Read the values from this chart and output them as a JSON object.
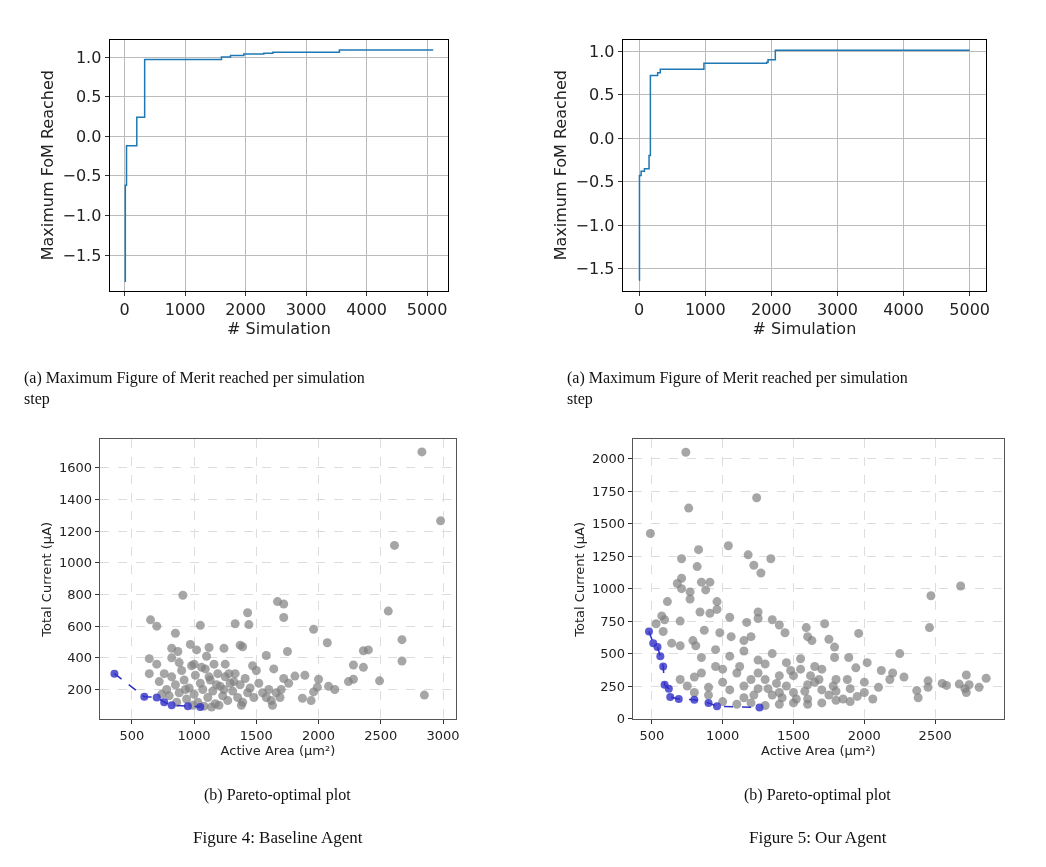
{
  "chart_data": [
    {
      "type": "step",
      "xlabel": "# Simulation",
      "ylabel": "Maximum FoM Reached",
      "grid": true,
      "xlim": [
        -250,
        5350
      ],
      "xticks": [
        0,
        1000,
        2000,
        3000,
        4000,
        5000
      ],
      "ylim": [
        -1.95,
        1.22
      ],
      "yticks": [
        {
          "value": -1.5,
          "label": "−1.5"
        },
        {
          "value": -1,
          "label": "−1.0"
        },
        {
          "value": -0.5,
          "label": "−0.5"
        },
        {
          "value": 0,
          "label": "0.0"
        },
        {
          "value": 0.5,
          "label": "0.5"
        },
        {
          "value": 1,
          "label": "1.0"
        }
      ],
      "series": [
        {
          "color": "#1f77b4",
          "x": [
            0,
            10,
            30,
            200,
            330,
            1600,
            1750,
            1970,
            2300,
            2450,
            3550,
            5100
          ],
          "values": [
            -1.83,
            -0.62,
            -0.12,
            0.24,
            0.97,
            1.0,
            1.02,
            1.04,
            1.05,
            1.06,
            1.09,
            1.09
          ]
        }
      ],
      "annotations": [
        "(a) Maximum Figure of Merit reached per simulation step"
      ]
    },
    {
      "type": "step",
      "xlabel": "# Simulation",
      "ylabel": "Maximum FoM Reached",
      "grid": true,
      "xlim": [
        -250,
        5250
      ],
      "xticks": [
        0,
        1000,
        2000,
        3000,
        4000,
        5000
      ],
      "ylim": [
        -1.75,
        1.13
      ],
      "yticks": [
        {
          "value": -1.5,
          "label": "−1.5"
        },
        {
          "value": -1,
          "label": "−1.0"
        },
        {
          "value": -0.5,
          "label": "−0.5"
        },
        {
          "value": 0,
          "label": "0.0"
        },
        {
          "value": 0.5,
          "label": "0.5"
        },
        {
          "value": 1,
          "label": "1.0"
        }
      ],
      "series": [
        {
          "color": "#1f77b4",
          "x": [
            0,
            5,
            30,
            80,
            150,
            170,
            280,
            320,
            980,
            1930,
            1950,
            2060,
            5000
          ],
          "values": [
            -1.63,
            -0.43,
            -0.38,
            -0.35,
            -0.2,
            0.72,
            0.75,
            0.79,
            0.86,
            0.87,
            0.9,
            1.01,
            1.01
          ]
        }
      ],
      "annotations": [
        "(a) Maximum Figure of Merit reached per simulation step"
      ]
    },
    {
      "type": "scatter",
      "xlabel": "Active Area (µm²)",
      "ylabel": "Total Current (µA)",
      "grid": true,
      "xlim": [
        241,
        3106
      ],
      "xticks": [
        500,
        1000,
        1500,
        2000,
        2500,
        3000
      ],
      "ylim": [
        13,
        1779
      ],
      "yticks": [
        200,
        400,
        600,
        800,
        1000,
        1200,
        1400,
        1600
      ],
      "series": [
        {
          "type": "scatter",
          "color": "#808080",
          "x": [
            2830,
            2980,
            2610,
            910,
            1670,
            1720,
            1720,
            2560,
            650,
            700,
            1050,
            1330,
            1440,
            1430,
            850,
            1960,
            2670,
            2070,
            2360,
            2400,
            2670,
            1750,
            1370,
            1390,
            1120,
            1240,
            970,
            820,
            870,
            1020,
            1100,
            640,
            820,
            1580,
            1640,
            1250,
            2280,
            2360,
            1890,
            1810,
            2000,
            1990,
            2080,
            2130,
            2240,
            2280,
            2490,
            1870,
            1940,
            1960,
            2850,
            1630,
            640,
            700,
            1470,
            1500,
            1720,
            1760,
            1700,
            720,
            760,
            780,
            800,
            820,
            850,
            880,
            900,
            920,
            940,
            960,
            980,
            1000,
            1010,
            1030,
            1050,
            1070,
            1090,
            1110,
            1130,
            1150,
            1170,
            1190,
            1210,
            1230,
            1250,
            1270,
            1290,
            1310,
            1330,
            1350,
            1370,
            1390,
            1410,
            1430,
            1450,
            1480,
            1520,
            1550,
            1580,
            1600,
            1620,
            1660,
            1690,
            740,
            860,
            990,
            1080,
            1140,
            1200,
            1380,
            1000,
            1060,
            1160,
            1280,
            880,
            930,
            1240,
            1320,
            1120,
            1180
          ],
          "values": [
            1700,
            1265,
            1110,
            795,
            755,
            740,
            655,
            695,
            640,
            600,
            605,
            615,
            610,
            685,
            555,
            580,
            515,
            495,
            445,
            450,
            380,
            440,
            480,
            470,
            465,
            460,
            485,
            460,
            440,
            450,
            410,
            395,
            400,
            415,
            330,
            360,
            355,
            340,
            290,
            285,
            265,
            215,
            220,
            200,
            250,
            265,
            255,
            145,
            130,
            185,
            165,
            100,
            300,
            360,
            350,
            320,
            270,
            240,
            200,
            250,
            300,
            200,
            160,
            280,
            230,
            180,
            320,
            260,
            140,
            210,
            350,
            170,
            290,
            120,
            240,
            200,
            330,
            150,
            260,
            190,
            110,
            300,
            220,
            160,
            280,
            130,
            240,
            190,
            300,
            150,
            230,
            120,
            270,
            180,
            210,
            150,
            240,
            180,
            150,
            200,
            130,
            180,
            150,
            170,
            120,
            100,
            95,
            90,
            100,
            100,
            360,
            340,
            360,
            300,
            370,
            200,
            200,
            250,
            280,
            230
          ]
        },
        {
          "type": "line",
          "marker": "circle",
          "line_style": "dashed",
          "color": "#2f2fc8",
          "x": [
            360,
            600,
            700,
            760,
            820,
            950,
            1050
          ],
          "values": [
            300,
            155,
            150,
            120,
            100,
            95,
            90
          ]
        }
      ],
      "annotations": [
        "(b) Pareto-optimal plot",
        "Figure 4: Baseline Agent"
      ]
    },
    {
      "type": "scatter",
      "xlabel": "Active Area (µm²)",
      "ylabel": "Total Current (µA)",
      "grid": true,
      "xlim": [
        364,
        2987
      ],
      "xticks": [
        500,
        1000,
        1500,
        2000,
        2500
      ],
      "ylim": [
        -5,
        2149
      ],
      "yticks": [
        0,
        250,
        500,
        750,
        1000,
        1250,
        1500,
        1750,
        2000
      ],
      "series": [
        {
          "type": "scatter",
          "color": "#808080",
          "x": [
            740,
            1240,
            760,
            490,
            1040,
            1180,
            1340,
            710,
            830,
            820,
            1220,
            1270,
            680,
            710,
            850,
            910,
            710,
            880,
            770,
            770,
            610,
            960,
            960,
            840,
            910,
            1250,
            1250,
            1050,
            1170,
            1350,
            1400,
            1720,
            2680,
            2470,
            2460,
            1960,
            1590,
            1600,
            1630,
            1750,
            1440,
            1200,
            1150,
            1060,
            700,
            530,
            570,
            590,
            580,
            640,
            700,
            790,
            810,
            870,
            980,
            2250,
            1790,
            1790,
            1890,
            2120,
            2720,
            2860,
            2740,
            2810,
            2580,
            2550,
            2670,
            2710,
            2720,
            2450,
            2450,
            2370,
            2380,
            2280,
            2200,
            2180,
            2100,
            2060,
            2020,
            1940,
            2000,
            700,
            750,
            800,
            850,
            900,
            950,
            1000,
            1050,
            1100,
            1150,
            1200,
            1250,
            1300,
            1350,
            1400,
            1450,
            1500,
            1550,
            1600,
            1650,
            1700,
            1750,
            1800,
            1850,
            1900,
            1950,
            1000,
            1100,
            1200,
            1300,
            1400,
            1500,
            1600,
            1700,
            1800,
            1900,
            1050,
            1150,
            1250,
            1350,
            1450,
            1550,
            1650,
            950,
            850,
            1000,
            1300,
            1400,
            1500,
            1600,
            1700,
            1800,
            1120,
            1220,
            1320,
            1420,
            1520,
            1620,
            900,
            800,
            1150,
            1250,
            1380,
            1480,
            1580,
            1680,
            1780,
            1880,
            2000
          ],
          "values": [
            2050,
            1700,
            1620,
            1425,
            1330,
            1260,
            1230,
            1230,
            1300,
            1170,
            1180,
            1120,
            1040,
            1080,
            1050,
            1050,
            1000,
            990,
            975,
            920,
            900,
            900,
            840,
            820,
            810,
            820,
            770,
            780,
            740,
            760,
            720,
            730,
            1020,
            945,
            700,
            655,
            700,
            630,
            600,
            610,
            660,
            630,
            600,
            630,
            750,
            730,
            790,
            760,
            670,
            580,
            560,
            600,
            560,
            680,
            660,
            500,
            550,
            470,
            470,
            370,
            335,
            310,
            260,
            240,
            255,
            270,
            265,
            230,
            200,
            290,
            240,
            215,
            160,
            320,
            350,
            300,
            240,
            150,
            430,
            390,
            280,
            300,
            250,
            200,
            350,
            180,
            400,
            280,
            220,
            350,
            160,
            300,
            230,
            420,
            180,
            330,
            250,
            200,
            380,
            150,
            280,
            220,
            180,
            300,
            150,
            230,
            170,
            130,
            110,
            120,
            100,
            110,
            120,
            110,
            120,
            140,
            130,
            480,
            520,
            450,
            500,
            430,
            460,
            400,
            530,
            470,
            380,
            300,
            200,
            330,
            260,
            380,
            210,
            400,
            180,
            230,
            160,
            150,
            330,
            240,
            320,
            250,
            350,
            270,
            370,
            210,
            300,
            250,
            300,
            200
          ]
        },
        {
          "type": "line",
          "marker": "circle",
          "line_style": "dashed",
          "color": "#2f2fc8",
          "x": [
            480,
            510,
            540,
            560,
            580,
            590,
            620,
            630,
            690,
            800,
            900,
            960,
            1260
          ],
          "values": [
            670,
            580,
            550,
            480,
            400,
            260,
            230,
            165,
            150,
            145,
            120,
            95,
            85
          ]
        }
      ],
      "annotations": [
        "(b) Pareto-optimal plot",
        "Figure 5: Our Agent"
      ]
    }
  ]
}
